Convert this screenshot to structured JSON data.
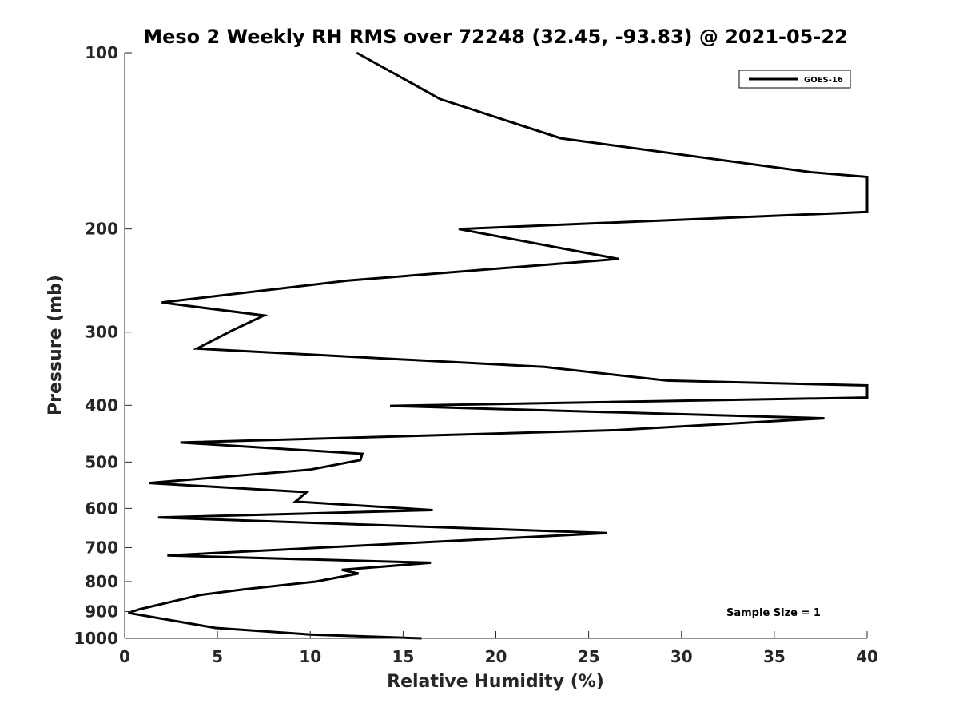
{
  "chart_data": {
    "type": "line",
    "title": "Meso 2 Weekly RH RMS over 72248 (32.45, -93.83) @ 2021-05-22",
    "xlabel": "Relative Humidity (%)",
    "ylabel": "Pressure (mb)",
    "xlim": [
      0,
      40
    ],
    "ylim": [
      100,
      1000
    ],
    "y_scale": "log",
    "y_reversed": true,
    "grid": false,
    "legend_position": "top-right",
    "x_ticks": [
      0,
      5,
      10,
      15,
      20,
      25,
      30,
      35,
      40
    ],
    "y_ticks": [
      100,
      200,
      300,
      400,
      500,
      600,
      700,
      800,
      900,
      1000
    ],
    "annotation": "Sample Size = 1",
    "series": [
      {
        "name": "GOES-16",
        "color": "#000000",
        "points": [
          [
            12.5,
            100
          ],
          [
            17.0,
            120
          ],
          [
            23.5,
            140
          ],
          [
            37.0,
            160
          ],
          [
            40.0,
            163
          ],
          [
            40.0,
            187
          ],
          [
            18.0,
            200
          ],
          [
            26.6,
            225
          ],
          [
            12.0,
            245
          ],
          [
            2.0,
            267
          ],
          [
            7.5,
            281
          ],
          [
            5.8,
            298
          ],
          [
            3.9,
            320
          ],
          [
            22.6,
            344
          ],
          [
            29.2,
            363
          ],
          [
            40.0,
            370
          ],
          [
            40.0,
            388
          ],
          [
            14.3,
            401
          ],
          [
            37.7,
            421
          ],
          [
            26.5,
            441
          ],
          [
            3.0,
            463
          ],
          [
            12.8,
            484
          ],
          [
            12.7,
            496
          ],
          [
            10.0,
            515
          ],
          [
            1.3,
            543
          ],
          [
            9.8,
            563
          ],
          [
            9.2,
            584
          ],
          [
            16.6,
            604
          ],
          [
            1.8,
            622
          ],
          [
            26.0,
            661
          ],
          [
            2.3,
            722
          ],
          [
            16.5,
            743
          ],
          [
            11.7,
            764
          ],
          [
            12.6,
            775
          ],
          [
            10.3,
            800
          ],
          [
            6.4,
            825
          ],
          [
            4.1,
            843
          ],
          [
            0.8,
            892
          ],
          [
            0.2,
            905
          ],
          [
            4.9,
            960
          ],
          [
            10.0,
            985
          ],
          [
            16.0,
            1000
          ]
        ]
      }
    ]
  }
}
